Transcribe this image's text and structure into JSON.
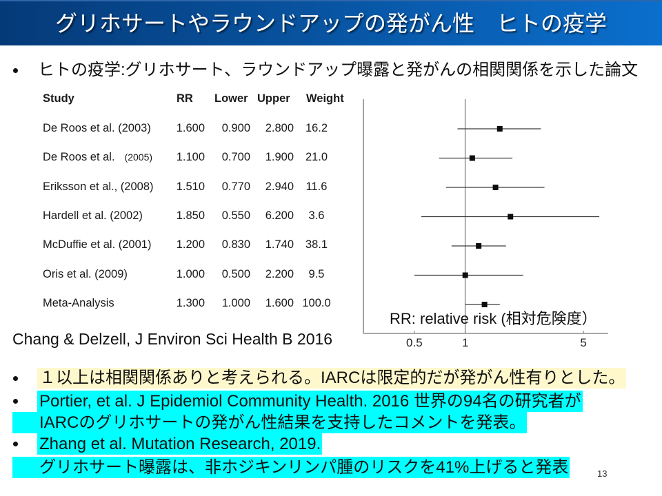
{
  "header": {
    "title": "グリホサートやラウンドアップの発がん性　ヒトの疫学"
  },
  "intro": {
    "text": "ヒトの疫学:グリホサート、ラウンドアップ曝露と発がんの相関関係を示した論文"
  },
  "citation": "Chang & Delzell, J Environ Sci Health B 2016",
  "bullets": [
    {
      "lines": [
        "１以上は相関関係ありと考えられる。IARCは限定的だが発がん性有りとした。"
      ]
    },
    {
      "lines": [
        "Portier, et al. J Epidemiol Community Health. 2016 世界の94名の研究者が",
        "IARCのグリホサートの発がん性結果を支持したコメントを発表。"
      ]
    },
    {
      "lines": [
        "Zhang et al. Mutation Research, 2019.",
        "グリホサート曝露は、非ホジキンリンパ腫のリスクを41%上げると発表"
      ]
    }
  ],
  "page_number": "13",
  "colors": {
    "header_start": "#053a78",
    "header_end": "#0b6fcd",
    "highlight_yellow": "#FFF8CC",
    "highlight_cyan": "#00FFFF",
    "marker": "#0d0d0d"
  },
  "chart_data": {
    "type": "scatter",
    "subtype": "forest-plot",
    "x_scale": "log",
    "xlim": [
      0.25,
      7
    ],
    "xticks": [
      0.5,
      1,
      5
    ],
    "xtick_labels": [
      "0.5",
      "1",
      "5"
    ],
    "reference_line": 1,
    "grid": false,
    "annotation": "RR: relative risk (相対危険度）",
    "columns": [
      "Study",
      "RR",
      "Lower",
      "Upper",
      "Weight"
    ],
    "rows": [
      {
        "study": "De Roos et al. (2003)",
        "rr": "1.600",
        "lower": "0.900",
        "upper": "2.800",
        "weight": "16.2"
      },
      {
        "study": "De Roos et al.",
        "year_note": "(2005)",
        "rr": "1.100",
        "lower": "0.700",
        "upper": "1.900",
        "weight": "21.0"
      },
      {
        "study": "Eriksson et al., (2008)",
        "rr": "1.510",
        "lower": "0.770",
        "upper": "2.940",
        "weight": "11.6"
      },
      {
        "study": "Hardell et al. (2002)",
        "rr": "1.850",
        "lower": "0.550",
        "upper": "6.200",
        "weight": "3.6"
      },
      {
        "study": "McDuffie et al. (2001)",
        "rr": "1.200",
        "lower": "0.830",
        "upper": "1.740",
        "weight": "38.1"
      },
      {
        "study": "Oris et al. (2009)",
        "rr": "1.000",
        "lower": "0.500",
        "upper": "2.200",
        "weight": "9.5"
      },
      {
        "study": "Meta-Analysis",
        "rr": "1.300",
        "lower": "1.000",
        "upper": "1.600",
        "weight": "100.0"
      }
    ]
  }
}
